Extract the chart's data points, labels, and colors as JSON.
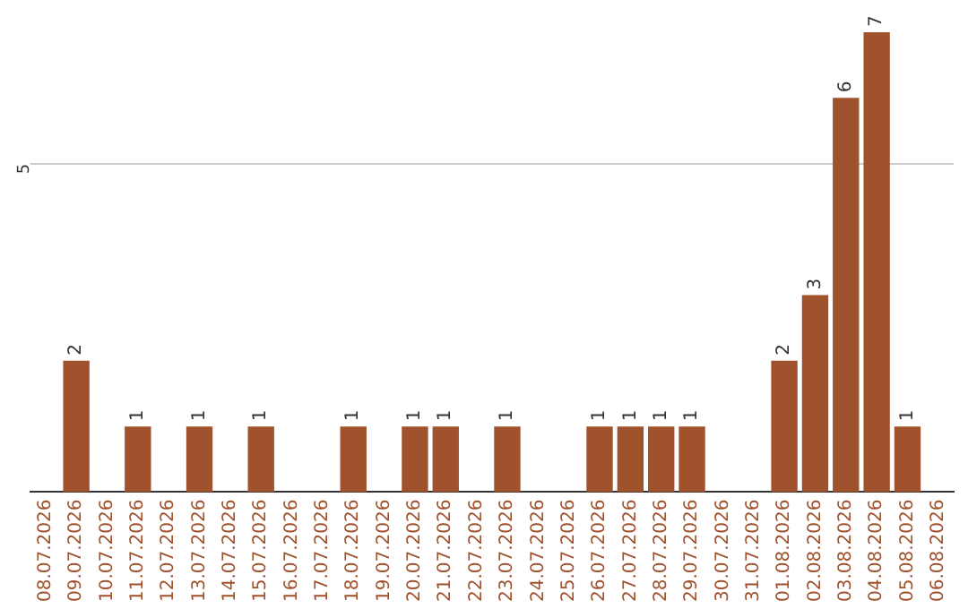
{
  "chart_data": {
    "type": "bar",
    "categories": [
      "08.07.2026",
      "09.07.2026",
      "10.07.2026",
      "11.07.2026",
      "12.07.2026",
      "13.07.2026",
      "14.07.2026",
      "15.07.2026",
      "16.07.2026",
      "17.07.2026",
      "18.07.2026",
      "19.07.2026",
      "20.07.2026",
      "21.07.2026",
      "22.07.2026",
      "23.07.2026",
      "24.07.2026",
      "25.07.2026",
      "26.07.2026",
      "27.07.2026",
      "28.07.2026",
      "29.07.2026",
      "30.07.2026",
      "31.07.2026",
      "01.08.2026",
      "02.08.2026",
      "03.08.2026",
      "04.08.2026",
      "05.08.2026",
      "06.08.2026"
    ],
    "values": [
      0,
      2,
      0,
      1,
      0,
      1,
      0,
      1,
      0,
      0,
      1,
      0,
      1,
      1,
      0,
      1,
      0,
      0,
      1,
      1,
      1,
      1,
      0,
      0,
      2,
      3,
      6,
      7,
      1,
      0
    ],
    "value_labels": [
      null,
      "2",
      null,
      "1",
      null,
      "1",
      null,
      "1",
      null,
      null,
      "1",
      null,
      "1",
      "1",
      null,
      "1",
      null,
      null,
      "1",
      "1",
      "1",
      "1",
      null,
      null,
      "2",
      "3",
      "6",
      "7",
      "1",
      null
    ],
    "color": "#a0522d",
    "ylim": [
      0,
      7
    ],
    "yticks": [
      5
    ],
    "grid": "y",
    "legend": false
  }
}
